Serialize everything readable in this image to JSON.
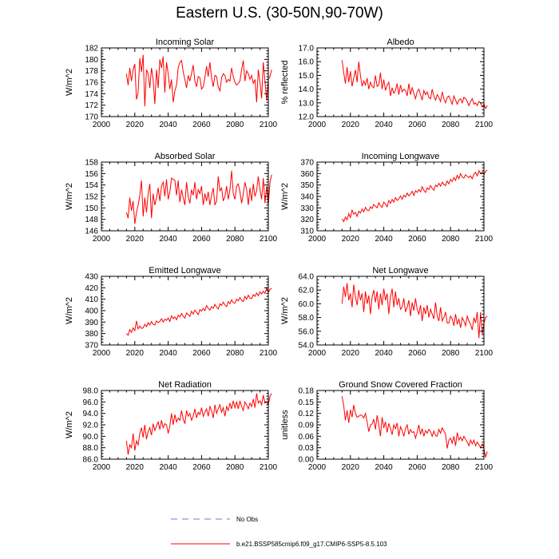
{
  "title": "Eastern U.S. (30-50N,90-70W)",
  "legend": {
    "obs_label": "No Obs",
    "obs_color": "#7777dd",
    "model_label": "b.e21.BSSP585cmip6.f09_g17.CMIP6-SSP5-8.5.103",
    "model_color": "#ff0000"
  },
  "chart_data": [
    {
      "type": "line",
      "title": "Incoming Solar",
      "xlabel": "",
      "ylabel": "W/m^2",
      "xlim": [
        2000,
        2100
      ],
      "ylim": [
        170,
        182
      ],
      "xticks": [
        2000,
        2020,
        2040,
        2060,
        2080,
        2100
      ],
      "yticks": [
        "170",
        "172",
        "174",
        "176",
        "178",
        "180",
        "182"
      ],
      "series": [
        {
          "name": "b.e21.BSSP585cmip6.f09_g17.CMIP6-SSP5-8.5.103",
          "color": "#ff0000",
          "x_start": 2015,
          "values": [
            177.5,
            175.5,
            178.5,
            176.2,
            178.2,
            179.2,
            173.0,
            174.2,
            180.2,
            177.8,
            180.8,
            171.8,
            178.2,
            177.5,
            175.0,
            178.5,
            176.5,
            172.2,
            178.2,
            175.0,
            180.0,
            178.5,
            180.5,
            174.2,
            179.5,
            177.5,
            174.8,
            176.5,
            172.5,
            174.5,
            175.5,
            178.5,
            179.5,
            179.8,
            177.8,
            176.5,
            175.0,
            177.2,
            176.2,
            177.5,
            179.0,
            176.2,
            175.2,
            177.0,
            176.8,
            174.8,
            175.2,
            176.8,
            178.8,
            177.0,
            179.5,
            176.8,
            175.2,
            177.2,
            177.0,
            175.2,
            174.5,
            176.8,
            177.5,
            177.2,
            176.0,
            176.5,
            176.2,
            178.5,
            177.0,
            176.0,
            175.5,
            175.8,
            176.2,
            178.2,
            179.8,
            176.2,
            178.0,
            177.5,
            176.5,
            177.2,
            175.8,
            176.5,
            172.5,
            178.2,
            176.0,
            173.2,
            179.5,
            176.2,
            172.8,
            176.5,
            177.0,
            178.2
          ]
        }
      ]
    },
    {
      "type": "line",
      "title": "Albedo",
      "xlabel": "",
      "ylabel": "% reflected",
      "xlim": [
        2000,
        2100
      ],
      "ylim": [
        12.0,
        17.0
      ],
      "xticks": [
        2000,
        2020,
        2040,
        2060,
        2080,
        2100
      ],
      "yticks": [
        "12.0",
        "13.0",
        "14.0",
        "15.0",
        "16.0",
        "17.0"
      ],
      "series": [
        {
          "name": "b.e21.BSSP585cmip6.f09_g17.CMIP6-SSP5-8.5.103",
          "color": "#ff0000",
          "x_start": 2015,
          "values": [
            16.1,
            15.2,
            14.4,
            15.6,
            14.5,
            15.3,
            14.2,
            14.8,
            15.4,
            14.5,
            16.0,
            15.0,
            14.2,
            14.6,
            14.3,
            14.8,
            14.0,
            14.5,
            14.2,
            14.1,
            15.0,
            14.2,
            14.3,
            15.2,
            14.0,
            14.7,
            13.9,
            14.3,
            14.5,
            13.5,
            14.1,
            13.7,
            13.9,
            14.4,
            13.6,
            14.3,
            13.8,
            14.0,
            13.9,
            13.5,
            14.4,
            13.6,
            14.1,
            13.7,
            13.3,
            13.8,
            14.0,
            13.6,
            13.2,
            13.9,
            13.6,
            13.8,
            13.4,
            13.3,
            14.0,
            13.5,
            13.2,
            13.6,
            13.4,
            13.1,
            13.8,
            13.3,
            13.0,
            13.4,
            13.5,
            13.2,
            12.9,
            13.5,
            13.2,
            12.9,
            13.2,
            13.3,
            13.0,
            13.4,
            13.3,
            13.1,
            12.8,
            13.1,
            13.3,
            12.9,
            13.0,
            12.8,
            13.1,
            13.0,
            12.7,
            12.9,
            12.6,
            12.8
          ]
        }
      ]
    },
    {
      "type": "line",
      "title": "Absorbed Solar",
      "xlabel": "",
      "ylabel": "W/m^2",
      "xlim": [
        2000,
        2100
      ],
      "ylim": [
        146,
        158
      ],
      "xticks": [
        2000,
        2020,
        2040,
        2060,
        2080,
        2100
      ],
      "yticks": [
        "146",
        "148",
        "150",
        "152",
        "154",
        "156",
        "158"
      ],
      "series": [
        {
          "name": "b.e21.BSSP585cmip6.f09_g17.CMIP6-SSP5-8.5.103",
          "color": "#ff0000",
          "x_start": 2015,
          "values": [
            149.2,
            148.2,
            151.8,
            149.5,
            151.2,
            147.2,
            149.2,
            150.5,
            152.2,
            154.8,
            148.5,
            151.8,
            149.2,
            152.5,
            154.2,
            148.2,
            152.5,
            150.5,
            151.8,
            153.5,
            151.2,
            153.8,
            154.5,
            152.0,
            155.0,
            151.5,
            152.8,
            155.2,
            155.0,
            154.8,
            152.2,
            154.8,
            151.0,
            153.2,
            151.8,
            150.5,
            154.5,
            152.0,
            150.8,
            153.2,
            152.2,
            154.5,
            151.5,
            153.2,
            152.5,
            153.8,
            150.5,
            152.5,
            151.2,
            152.8,
            150.5,
            152.2,
            153.5,
            150.5,
            151.2,
            155.5,
            153.0,
            153.5,
            151.2,
            152.0,
            153.8,
            151.5,
            153.2,
            156.5,
            152.5,
            151.5,
            153.8,
            154.2,
            152.8,
            150.8,
            152.5,
            154.5,
            153.2,
            150.5,
            153.5,
            151.2,
            154.2,
            152.0,
            153.0,
            155.5,
            153.2,
            151.5,
            155.2,
            150.8,
            153.8,
            150.5,
            154.5,
            155.8
          ]
        }
      ]
    },
    {
      "type": "line",
      "title": "Incoming Longwave",
      "xlabel": "",
      "ylabel": "W/m^2",
      "xlim": [
        2000,
        2100
      ],
      "ylim": [
        310,
        370
      ],
      "xticks": [
        2000,
        2020,
        2040,
        2060,
        2080,
        2100
      ],
      "yticks": [
        "310",
        "320",
        "330",
        "340",
        "350",
        "360",
        "370"
      ],
      "series": [
        {
          "name": "b.e21.BSSP585cmip6.f09_g17.CMIP6-SSP5-8.5.103",
          "color": "#ff0000",
          "x_start": 2015,
          "values": [
            320.5,
            318.0,
            322.0,
            319.5,
            325.0,
            321.5,
            328.0,
            324.5,
            326.0,
            322.5,
            327.0,
            325.5,
            329.0,
            326.5,
            330.5,
            328.0,
            327.5,
            331.0,
            329.5,
            333.0,
            331.5,
            330.0,
            334.5,
            332.0,
            330.5,
            335.0,
            333.5,
            331.0,
            336.5,
            334.0,
            337.5,
            335.0,
            339.0,
            336.5,
            338.0,
            340.5,
            337.5,
            341.0,
            339.5,
            343.0,
            340.5,
            342.0,
            344.5,
            341.0,
            345.0,
            343.5,
            346.0,
            344.0,
            348.5,
            345.5,
            343.5,
            347.5,
            346.0,
            349.5,
            347.0,
            345.5,
            350.0,
            348.5,
            351.5,
            349.0,
            352.5,
            350.5,
            349.5,
            353.5,
            351.0,
            355.0,
            353.0,
            356.5,
            354.0,
            358.5,
            355.5,
            360.0,
            357.0,
            356.0,
            359.0,
            357.5,
            356.5,
            358.0,
            355.5,
            359.5,
            361.0,
            358.0,
            362.5,
            360.0,
            361.5,
            359.0,
            362.0,
            363.0
          ]
        }
      ]
    },
    {
      "type": "line",
      "title": "Emitted Longwave",
      "xlabel": "",
      "ylabel": "W/m^2",
      "xlim": [
        2000,
        2100
      ],
      "ylim": [
        370,
        430
      ],
      "xticks": [
        2000,
        2020,
        2040,
        2060,
        2080,
        2100
      ],
      "yticks": [
        "370",
        "380",
        "390",
        "400",
        "410",
        "420",
        "430"
      ],
      "series": [
        {
          "name": "b.e21.BSSP585cmip6.f09_g17.CMIP6-SSP5-8.5.103",
          "color": "#ff0000",
          "x_start": 2015,
          "values": [
            380.0,
            378.5,
            383.5,
            381.0,
            385.0,
            382.5,
            391.0,
            384.0,
            386.5,
            384.5,
            385.0,
            388.0,
            386.0,
            389.5,
            387.5,
            390.5,
            388.0,
            387.5,
            391.0,
            389.5,
            390.5,
            393.0,
            390.0,
            392.5,
            391.5,
            393.5,
            390.5,
            395.5,
            393.0,
            394.5,
            392.0,
            396.0,
            394.5,
            397.5,
            395.0,
            393.5,
            398.0,
            396.5,
            395.0,
            399.5,
            397.0,
            400.5,
            398.5,
            396.5,
            401.0,
            399.5,
            402.0,
            400.0,
            404.5,
            402.0,
            400.5,
            403.5,
            402.0,
            405.5,
            403.0,
            401.5,
            406.0,
            404.5,
            407.5,
            405.0,
            403.5,
            408.0,
            406.0,
            409.5,
            407.0,
            406.5,
            410.0,
            408.5,
            411.5,
            409.0,
            408.0,
            412.5,
            410.0,
            413.5,
            411.0,
            410.5,
            414.0,
            412.5,
            415.5,
            413.0,
            416.5,
            414.5,
            417.0,
            415.0,
            420.0,
            416.0,
            418.5,
            419.5
          ]
        }
      ]
    },
    {
      "type": "line",
      "title": "Net Longwave",
      "xlabel": "",
      "ylabel": "W/m^2",
      "xlim": [
        2000,
        2100
      ],
      "ylim": [
        54.0,
        64.0
      ],
      "xticks": [
        2000,
        2020,
        2040,
        2060,
        2080,
        2100
      ],
      "yticks": [
        "54.0",
        "56.0",
        "58.0",
        "60.0",
        "62.0",
        "64.0"
      ],
      "series": [
        {
          "name": "b.e21.BSSP585cmip6.f09_g17.CMIP6-SSP5-8.5.103",
          "color": "#ff0000",
          "x_start": 2015,
          "values": [
            60.0,
            62.5,
            61.0,
            63.0,
            60.5,
            61.5,
            59.5,
            62.8,
            61.0,
            59.8,
            62.0,
            60.5,
            61.5,
            58.8,
            61.8,
            60.0,
            61.2,
            58.5,
            61.0,
            62.0,
            60.2,
            61.8,
            59.2,
            61.5,
            59.8,
            62.2,
            60.5,
            61.5,
            58.5,
            61.0,
            62.2,
            59.5,
            61.8,
            59.8,
            60.8,
            59.2,
            59.5,
            60.8,
            58.8,
            59.5,
            60.5,
            58.2,
            60.2,
            59.0,
            60.8,
            59.2,
            58.5,
            59.8,
            57.5,
            59.5,
            58.5,
            59.8,
            58.0,
            59.2,
            58.5,
            57.8,
            60.2,
            58.2,
            57.5,
            59.5,
            57.5,
            58.0,
            58.8,
            57.2,
            57.2,
            58.2,
            57.8,
            56.8,
            58.5,
            57.0,
            57.8,
            56.5,
            58.0,
            57.5,
            56.8,
            58.2,
            57.5,
            57.0,
            56.2,
            58.0,
            57.2,
            58.8,
            55.0,
            58.8,
            55.5,
            57.2,
            58.0,
            58.2
          ]
        }
      ]
    },
    {
      "type": "line",
      "title": "Net Radiation",
      "xlabel": "",
      "ylabel": "W/m^2",
      "xlim": [
        2000,
        2100
      ],
      "ylim": [
        86.0,
        98.0
      ],
      "xticks": [
        2000,
        2020,
        2040,
        2060,
        2080,
        2100
      ],
      "yticks": [
        "86.0",
        "88.0",
        "90.0",
        "92.0",
        "94.0",
        "96.0",
        "98.0"
      ],
      "series": [
        {
          "name": "b.e21.BSSP585cmip6.f09_g17.CMIP6-SSP5-8.5.103",
          "color": "#ff0000",
          "x_start": 2015,
          "values": [
            89.2,
            86.8,
            88.5,
            88.0,
            90.5,
            87.5,
            89.2,
            88.5,
            90.5,
            91.5,
            89.8,
            92.0,
            89.5,
            90.8,
            91.5,
            90.2,
            92.2,
            91.0,
            91.8,
            92.5,
            91.2,
            92.8,
            91.5,
            92.2,
            92.0,
            90.5,
            91.8,
            94.0,
            92.0,
            93.8,
            92.5,
            93.2,
            92.8,
            94.5,
            93.0,
            92.2,
            94.5,
            93.5,
            94.0,
            92.8,
            93.5,
            94.8,
            93.2,
            94.2,
            93.8,
            95.0,
            93.5,
            94.2,
            94.8,
            93.5,
            95.2,
            94.5,
            93.2,
            95.5,
            94.0,
            94.8,
            95.5,
            94.2,
            95.0,
            93.5,
            95.2,
            94.5,
            95.8,
            94.8,
            96.2,
            95.0,
            96.0,
            94.8,
            96.2,
            95.2,
            94.5,
            96.0,
            95.5,
            94.8,
            95.8,
            95.2,
            96.5,
            95.0,
            97.5,
            95.8,
            96.2,
            95.5,
            97.2,
            95.8,
            96.0,
            95.5,
            97.0,
            97.5
          ]
        }
      ]
    },
    {
      "type": "line",
      "title": "Ground Snow Covered Fraction",
      "xlabel": "",
      "ylabel": "unitless",
      "xlim": [
        2000,
        2100
      ],
      "ylim": [
        0.0,
        0.18
      ],
      "xticks": [
        2000,
        2020,
        2040,
        2060,
        2080,
        2100
      ],
      "yticks": [
        "0.00",
        "0.03",
        "0.06",
        "0.09",
        "0.12",
        "0.15",
        "0.18"
      ],
      "series": [
        {
          "name": "b.e21.BSSP585cmip6.f09_g17.CMIP6-SSP5-8.5.103",
          "color": "#ff0000",
          "x_start": 2015,
          "values": [
            0.165,
            0.14,
            0.102,
            0.128,
            0.095,
            0.13,
            0.11,
            0.142,
            0.12,
            0.11,
            0.112,
            0.116,
            0.114,
            0.108,
            0.12,
            0.098,
            0.072,
            0.09,
            0.092,
            0.105,
            0.078,
            0.115,
            0.09,
            0.06,
            0.11,
            0.082,
            0.098,
            0.07,
            0.094,
            0.08,
            0.064,
            0.09,
            0.08,
            0.095,
            0.06,
            0.085,
            0.075,
            0.06,
            0.08,
            0.09,
            0.065,
            0.078,
            0.07,
            0.072,
            0.055,
            0.07,
            0.09,
            0.065,
            0.08,
            0.06,
            0.075,
            0.068,
            0.078,
            0.072,
            0.06,
            0.074,
            0.062,
            0.06,
            0.078,
            0.068,
            0.082,
            0.074,
            0.066,
            0.028,
            0.05,
            0.055,
            0.042,
            0.06,
            0.035,
            0.07,
            0.05,
            0.058,
            0.048,
            0.06,
            0.052,
            0.045,
            0.035,
            0.05,
            0.04,
            0.05,
            0.035,
            0.045,
            0.038,
            0.03,
            0.04,
            0.028,
            0.005,
            0.02
          ]
        }
      ]
    }
  ]
}
